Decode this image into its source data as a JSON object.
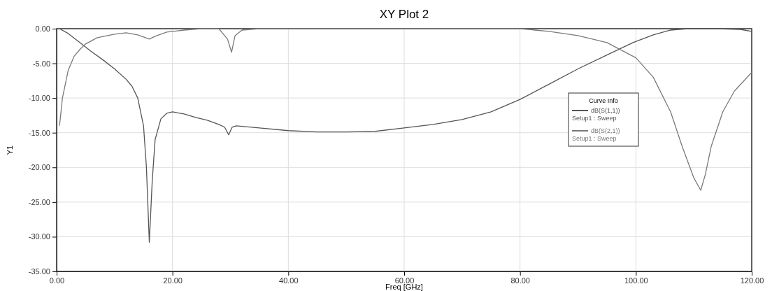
{
  "chart_data": {
    "type": "line",
    "title": "XY Plot 2",
    "xlabel": "Freq [GHz]",
    "ylabel": "Y1",
    "legend_title": "Curve Info",
    "legend": "right",
    "grid": true,
    "line_style": "solid",
    "marker": "none",
    "xlim": [
      0,
      120
    ],
    "ylim": [
      -35,
      0
    ],
    "xticks": [
      {
        "value": 0,
        "label": "0.00"
      },
      {
        "value": 20,
        "label": "20.00"
      },
      {
        "value": 40,
        "label": "40.00"
      },
      {
        "value": 60,
        "label": "60.00"
      },
      {
        "value": 80,
        "label": "80.00"
      },
      {
        "value": 100,
        "label": "100.00"
      },
      {
        "value": 120,
        "label": "120.00"
      }
    ],
    "yticks": [
      {
        "value": 0,
        "label": "0.00"
      },
      {
        "value": -5,
        "label": "-5.00"
      },
      {
        "value": -10,
        "label": "-10.00"
      },
      {
        "value": -15,
        "label": "-15.00"
      },
      {
        "value": -20,
        "label": "-20.00"
      },
      {
        "value": -25,
        "label": "-25.00"
      },
      {
        "value": -30,
        "label": "-30.00"
      },
      {
        "value": -35,
        "label": "-35.00"
      }
    ],
    "series": [
      {
        "name": "dB(S(1,1))\nSetup1 : Sweep",
        "color": "#555555",
        "x": [
          0.5,
          2,
          4,
          6,
          8,
          10,
          12,
          13,
          14,
          15,
          15.5,
          16,
          16.5,
          17,
          18,
          19,
          20,
          22,
          24,
          26,
          28,
          29,
          29.7,
          30.3,
          31,
          35,
          40,
          45,
          50,
          55,
          60,
          65,
          70,
          75,
          80,
          85,
          90,
          95,
          99.5,
          103,
          106,
          109,
          111,
          114,
          118,
          120
        ],
        "values": [
          0,
          -0.7,
          -2,
          -3.3,
          -4.5,
          -5.8,
          -7.3,
          -8.3,
          -10,
          -14,
          -20,
          -30.8,
          -22,
          -16,
          -13,
          -12.2,
          -12,
          -12.3,
          -12.8,
          -13.2,
          -13.8,
          -14.2,
          -15.3,
          -14.2,
          -14,
          -14.3,
          -14.7,
          -14.9,
          -14.9,
          -14.8,
          -14.3,
          -13.8,
          -13.1,
          -12,
          -10.2,
          -8,
          -5.8,
          -3.8,
          -2,
          -0.9,
          -0.2,
          0,
          0,
          0,
          -0.1,
          -0.4
        ]
      },
      {
        "name": "dB(S(2,1))\nSetup1 : Sweep",
        "color": "#7a7a7a",
        "x": [
          0.5,
          1,
          2,
          3,
          4,
          5,
          7,
          10,
          12,
          14,
          16,
          17,
          19,
          22,
          25,
          28,
          29.5,
          30.2,
          30.8,
          32,
          35,
          50,
          70,
          80,
          85,
          90,
          95,
          100,
          103,
          106,
          108,
          110,
          111.2,
          112,
          113,
          115,
          117,
          120
        ],
        "values": [
          -14,
          -10,
          -6,
          -4,
          -3,
          -2.2,
          -1.3,
          -0.8,
          -0.6,
          -0.9,
          -1.5,
          -1.1,
          -0.5,
          -0.2,
          0,
          0,
          -1.5,
          -3.4,
          -1,
          -0.2,
          0,
          0,
          0,
          0,
          -0.4,
          -1,
          -2,
          -4.2,
          -7,
          -12,
          -17,
          -21.5,
          -23.3,
          -21,
          -17,
          -12,
          -9,
          -6.3
        ]
      }
    ]
  }
}
